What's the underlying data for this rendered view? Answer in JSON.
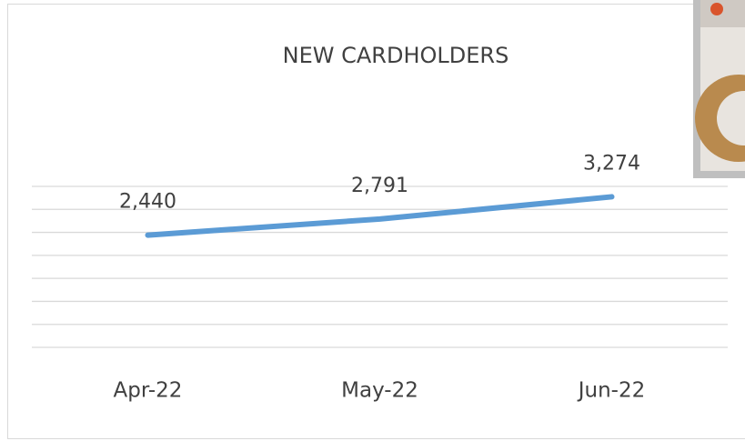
{
  "chart_data": {
    "type": "line",
    "title": "NEW CARDHOLDERS",
    "categories": [
      "Apr-22",
      "May-22",
      "Jun-22"
    ],
    "series": [
      {
        "name": null,
        "color": "#5b9bd5",
        "values": [
          2440,
          2791,
          3274
        ],
        "value_labels": [
          "2,440",
          "2,791",
          "3,274"
        ]
      }
    ],
    "ylim": [
      0,
      3500
    ],
    "yticks": [
      0,
      500,
      1000,
      1500,
      2000,
      2500,
      3000,
      3500
    ],
    "grid": true
  }
}
